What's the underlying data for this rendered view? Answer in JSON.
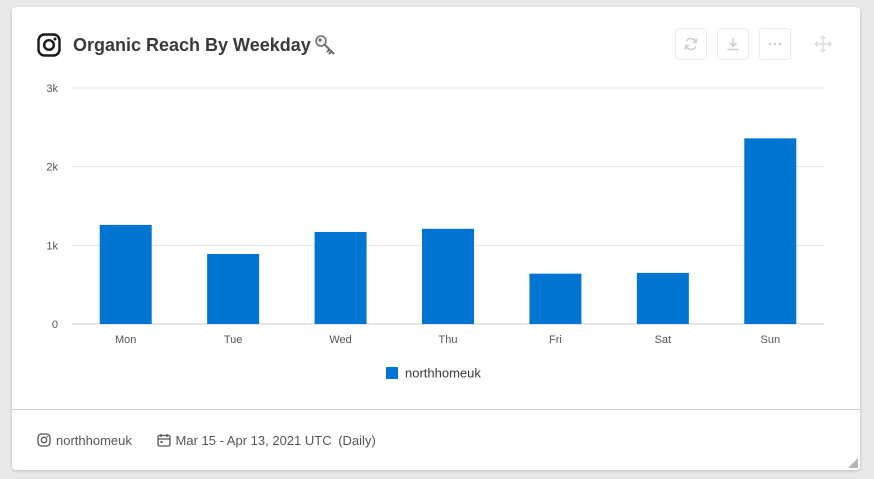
{
  "header": {
    "title": "Organic Reach By Weekday",
    "logo_icon": "instagram-icon",
    "key_icon": "key-icon",
    "toolbar": [
      {
        "name": "refresh-button",
        "icon": "refresh-icon"
      },
      {
        "name": "download-button",
        "icon": "download-icon"
      },
      {
        "name": "more-options-button",
        "icon": "more-horizontal-icon"
      }
    ],
    "move_icon": "move-icon"
  },
  "colors": {
    "bar": "#0274d1",
    "grid": "#e6e6e6",
    "tick_text": "#555555"
  },
  "chart_data": {
    "type": "bar",
    "categories": [
      "Mon",
      "Tue",
      "Wed",
      "Thu",
      "Fri",
      "Sat",
      "Sun"
    ],
    "series": [
      {
        "name": "northhomeuk",
        "values": [
          1260,
          890,
          1170,
          1210,
          640,
          650,
          2360
        ]
      }
    ],
    "ylim": [
      0,
      3000
    ],
    "yticks": [
      0,
      1000,
      2000,
      3000
    ],
    "ytick_labels": [
      "0",
      "1k",
      "2k",
      "3k"
    ],
    "title": "",
    "xlabel": "",
    "ylabel": "",
    "grid": true,
    "legend": "bottom-center"
  },
  "footer": {
    "account": "northhomeuk",
    "date_range": "Mar 15 - Apr 13, 2021 UTC",
    "granularity": "(Daily)"
  }
}
